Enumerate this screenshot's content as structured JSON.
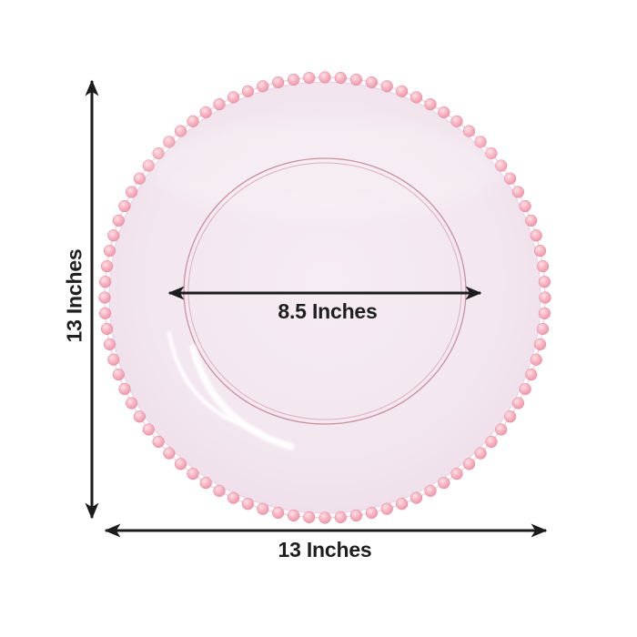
{
  "diagram": {
    "labels": {
      "height": "13 Inches",
      "width": "13 Inches",
      "inner_diameter": "8.5 Inches"
    },
    "bead_count": 88,
    "colors": {
      "background": "#ffffff",
      "arrow": "#1c1c1c",
      "label_text": "#1f1f1f",
      "plate_center": "#f6ecf3",
      "plate_mid": "#f3e7ef",
      "plate_edge_fill": "#efdfea",
      "plate_edge_line": "#e7d2e0",
      "bead_highlight": "#fde0e6",
      "bead_main": "#f6afbe",
      "bead_shadow": "#ea93a7",
      "bead_edge": "#dc8ba0",
      "chain": "#eec3cd",
      "inner_ring_outer": "#c98fa0",
      "inner_ring_inner": "#ddafbb",
      "highlight": "#ffffff"
    }
  }
}
